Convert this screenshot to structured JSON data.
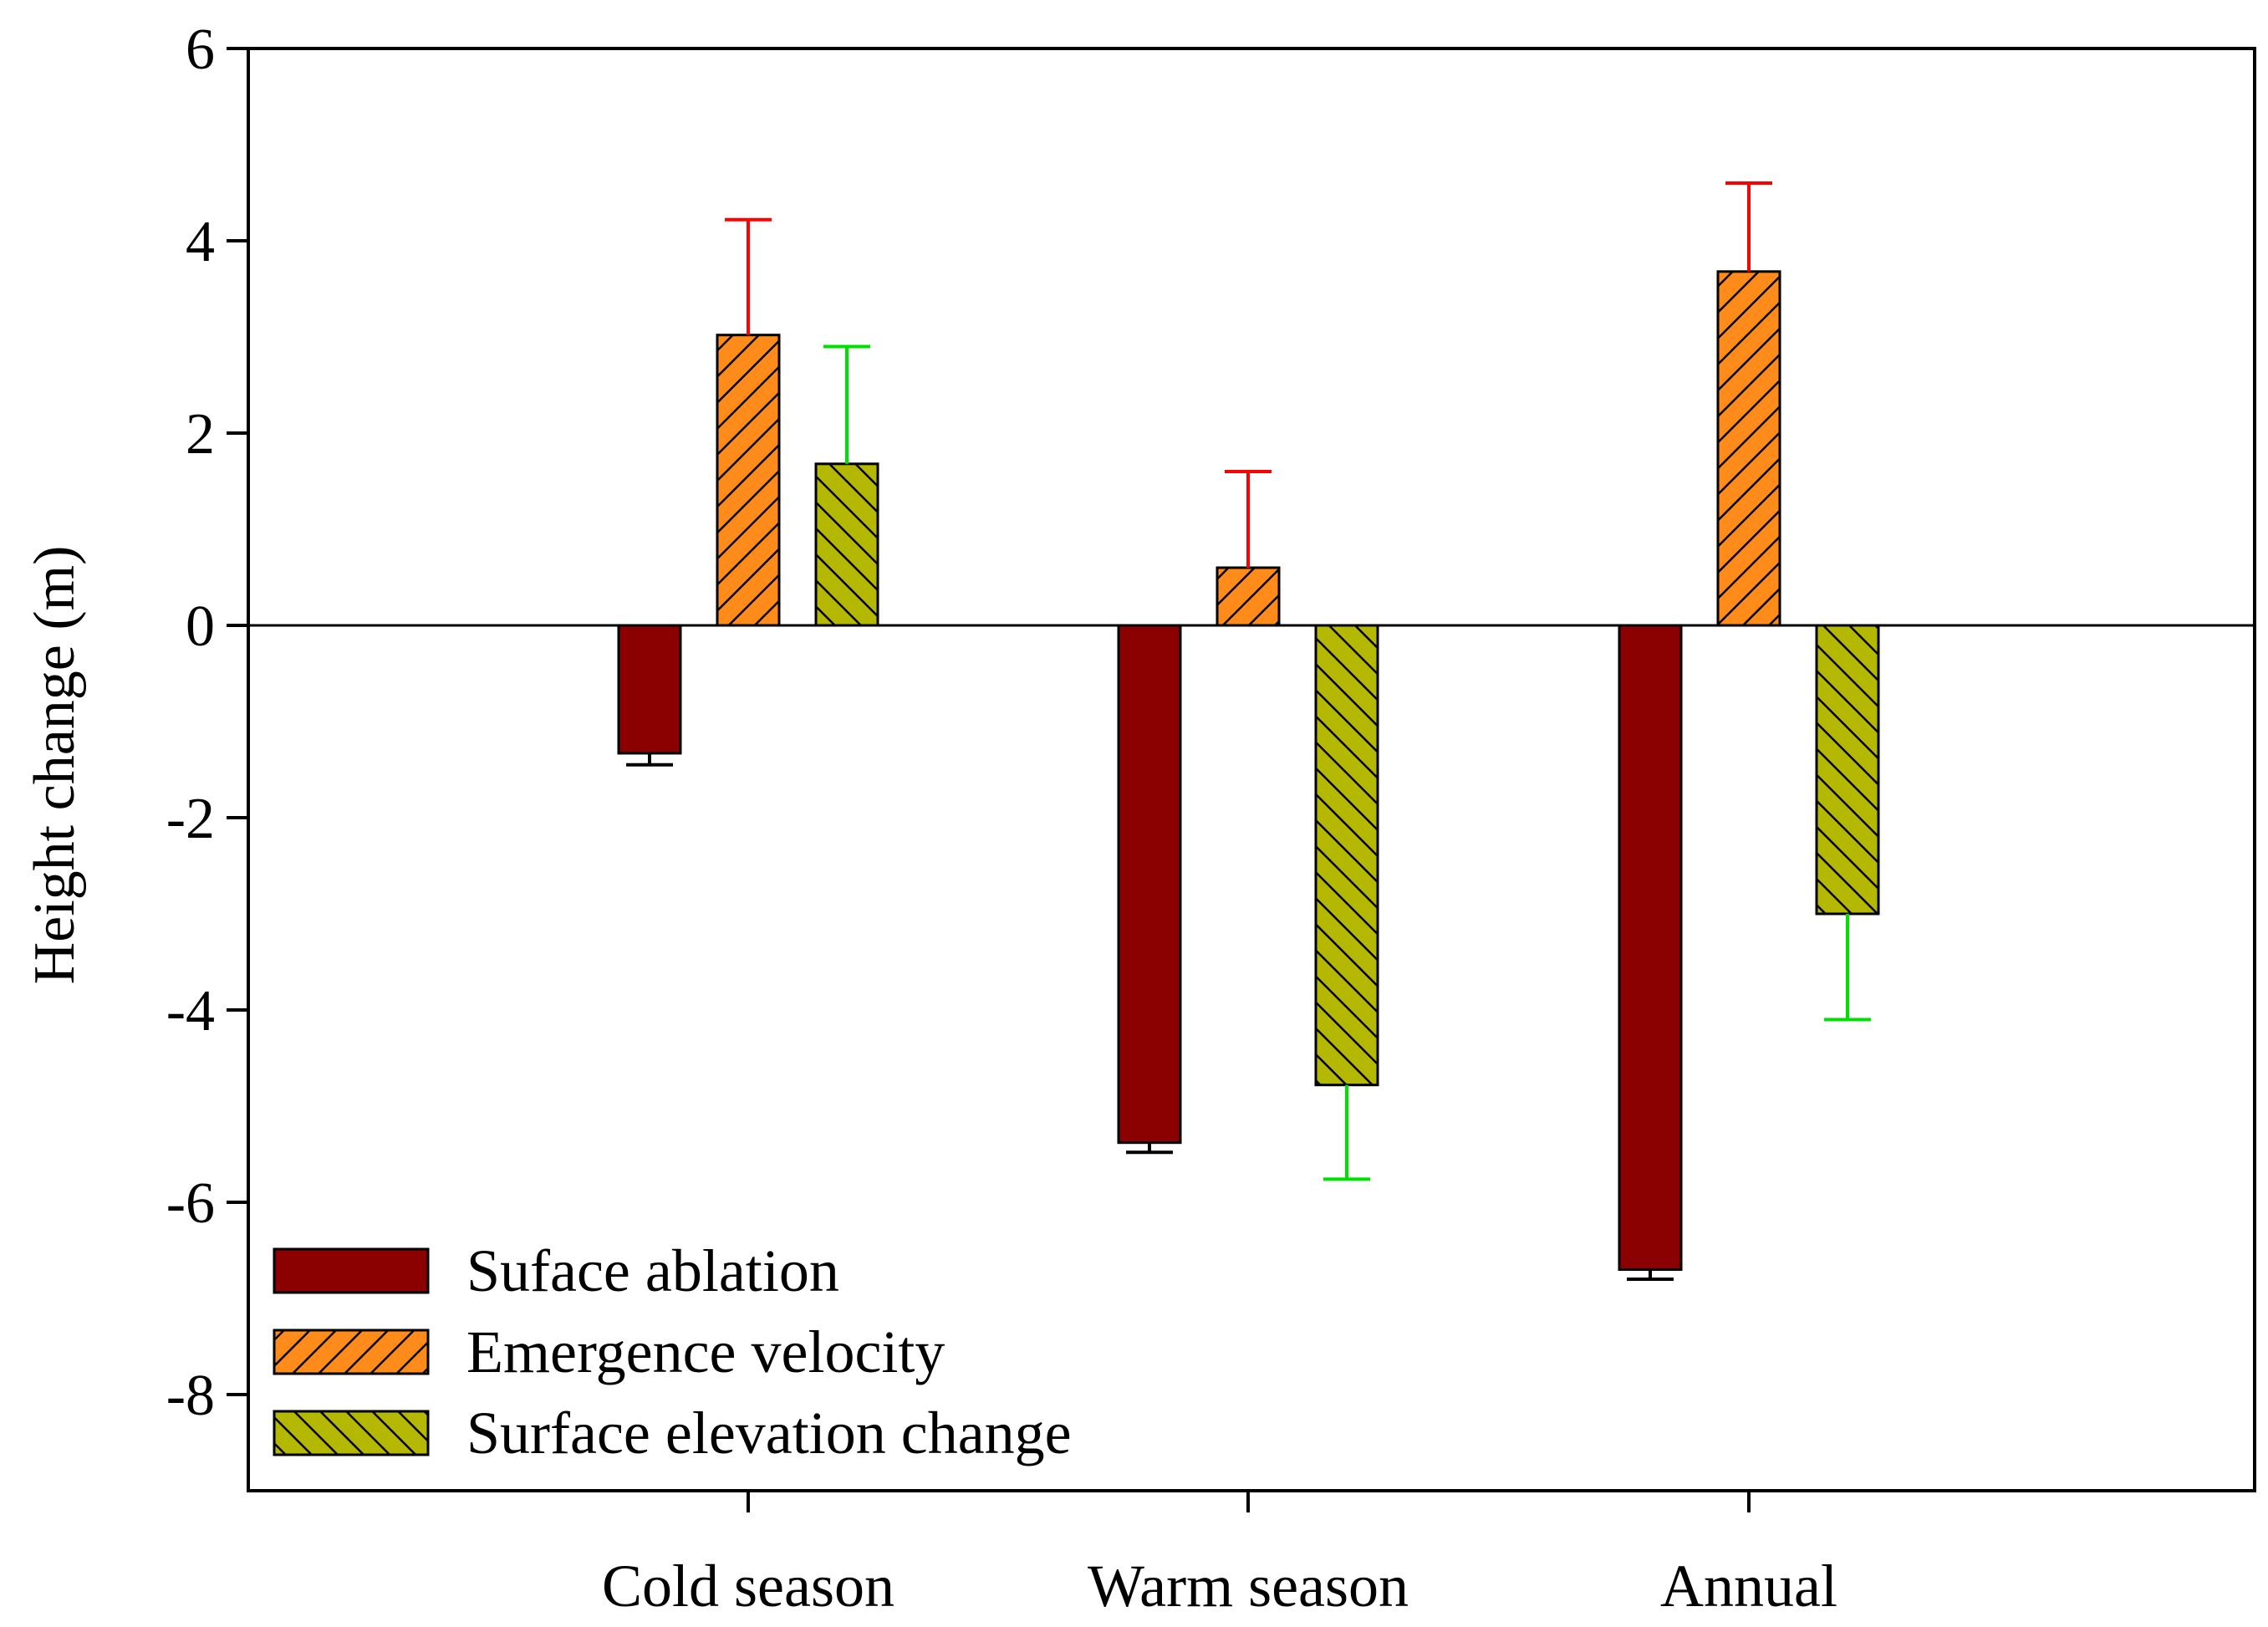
{
  "chart_data": {
    "type": "bar",
    "title": "",
    "xlabel": "",
    "ylabel": "Height change (m)",
    "ylim": [
      -9,
      6
    ],
    "yticks": [
      6,
      4,
      2,
      0,
      -2,
      -4,
      -6,
      -8
    ],
    "categories": [
      "Cold season",
      "Warm season",
      "Annual"
    ],
    "legend_position": "bottom-left",
    "series": [
      {
        "name": "Suface ablation",
        "values": [
          -1.33,
          -5.38,
          -6.7
        ],
        "errors": [
          0.12,
          0.1,
          0.1
        ],
        "fill": "#8b0000",
        "pattern": "solid",
        "error_color": "#000000"
      },
      {
        "name": "Emergence velocity",
        "values": [
          3.02,
          0.6,
          3.68
        ],
        "errors": [
          1.2,
          1.0,
          0.92
        ],
        "fill": "#ff8c1a",
        "pattern": "hatch-forward",
        "error_color": "#ff0000"
      },
      {
        "name": "Surface elevation change",
        "values": [
          1.68,
          -4.78,
          -3.0
        ],
        "errors": [
          1.22,
          0.98,
          1.1
        ],
        "fill": "#b5b800",
        "pattern": "hatch-backward",
        "error_color": "#00e000"
      }
    ]
  }
}
